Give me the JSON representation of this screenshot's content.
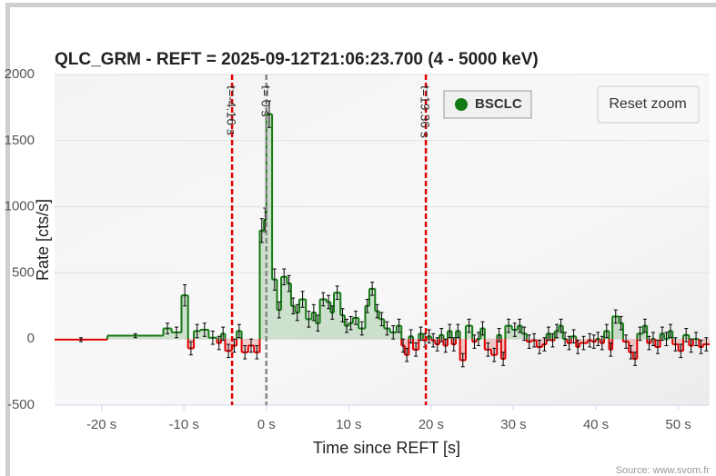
{
  "chart_data": {
    "type": "step",
    "title": "QLC_GRM - REFT = 2025-09-12T21:06:23.700 (4 - 5000 keV)",
    "xlabel": "Time since REFT [s]",
    "ylabel": "Rate [cts/s]",
    "source": "Source: www.svom.fr",
    "reset_button": "Reset zoom",
    "xlim": [
      -25.7,
      53.8
    ],
    "ylim": [
      -500,
      2000
    ],
    "xticks": [
      {
        "value": -20,
        "label": "-20 s"
      },
      {
        "value": -10,
        "label": "-10 s"
      },
      {
        "value": 0,
        "label": "0 s"
      },
      {
        "value": 10,
        "label": "10 s"
      },
      {
        "value": 20,
        "label": "20 s"
      },
      {
        "value": 30,
        "label": "30 s"
      },
      {
        "value": 40,
        "label": "40 s"
      },
      {
        "value": 50,
        "label": "50 s"
      }
    ],
    "yticks": [
      -500,
      0,
      500,
      1000,
      1500,
      2000
    ],
    "grid": true,
    "plot_lines": [
      {
        "value": -4.16,
        "label": "t=-4.16 s",
        "color": "#e00000"
      },
      {
        "value": 0,
        "label": "t= 0 s",
        "color": "#888888"
      },
      {
        "value": 19.36,
        "label": "t=19.36 s",
        "color": "#e00000"
      }
    ],
    "series": [
      {
        "name": "BSCLC",
        "color": "#137a13",
        "negative_color": "#e00000",
        "x": [
          -25.7,
          -19.3,
          -12.5,
          -11.5,
          -10.3,
          -9.5,
          -8.8,
          -8,
          -7,
          -6,
          -5.5,
          -5,
          -4.2,
          -3.6,
          -3,
          -2.2,
          -1.5,
          -0.8,
          -0.3,
          0,
          0.7,
          1.3,
          1.8,
          2.5,
          3,
          3.5,
          4,
          4.8,
          5.5,
          6,
          6.5,
          7.3,
          7.8,
          8.2,
          9,
          9.5,
          10,
          10.5,
          11.2,
          12,
          12.5,
          13.2,
          13.7,
          14.3,
          15,
          15.8,
          16.4,
          16.8,
          17.3,
          17.8,
          18.5,
          19,
          19.5,
          20,
          20.5,
          21,
          21.5,
          22,
          22.5,
          23,
          23.5,
          24.2,
          25,
          25.5,
          26,
          26.5,
          27.3,
          28,
          28.5,
          29,
          29.8,
          30.5,
          31,
          31.6,
          32.2,
          32.8,
          33.5,
          34,
          34.5,
          35,
          35.5,
          36,
          36.5,
          37,
          37.6,
          38,
          39,
          39.5,
          40,
          40.5,
          41,
          41.6,
          42,
          42.8,
          43.3,
          44,
          44.5,
          45,
          45.7,
          46.2,
          46.7,
          47.2,
          47.8,
          48.3,
          48.8,
          49.3,
          50,
          50.6,
          51.3,
          51.8,
          52.5,
          53
        ],
        "values": [
          -5,
          25,
          80,
          50,
          330,
          -70,
          60,
          70,
          10,
          -30,
          40,
          -90,
          -50,
          60,
          -100,
          -50,
          -100,
          820,
          900,
          1700,
          450,
          220,
          470,
          420,
          250,
          200,
          300,
          150,
          200,
          120,
          300,
          280,
          200,
          350,
          180,
          100,
          120,
          160,
          80,
          250,
          380,
          210,
          150,
          80,
          50,
          100,
          -50,
          -120,
          20,
          -80,
          40,
          -10,
          20,
          -10,
          -40,
          30,
          -50,
          60,
          -40,
          60,
          -160,
          100,
          -20,
          0,
          80,
          -80,
          -120,
          30,
          -150,
          100,
          70,
          100,
          40,
          -20,
          -10,
          -60,
          -40,
          40,
          -10,
          60,
          100,
          0,
          -30,
          20,
          -60,
          -30,
          -10,
          -20,
          0,
          -30,
          60,
          -80,
          170,
          120,
          -20,
          -100,
          -150,
          40,
          100,
          -30,
          0,
          -60,
          40,
          0,
          60,
          -40,
          -90,
          30,
          -50,
          0,
          -60,
          -40
        ],
        "errors": [
          15,
          15,
          40,
          40,
          80,
          50,
          50,
          50,
          50,
          50,
          50,
          50,
          50,
          50,
          50,
          50,
          50,
          90,
          90,
          100,
          80,
          60,
          60,
          60,
          60,
          60,
          60,
          60,
          60,
          60,
          50,
          50,
          50,
          50,
          50,
          50,
          50,
          50,
          50,
          50,
          50,
          50,
          50,
          50,
          50,
          50,
          50,
          50,
          50,
          50,
          50,
          50,
          50,
          50,
          50,
          50,
          50,
          50,
          50,
          50,
          50,
          50,
          50,
          50,
          50,
          50,
          50,
          50,
          50,
          50,
          50,
          50,
          50,
          50,
          50,
          50,
          50,
          50,
          50,
          50,
          50,
          50,
          50,
          50,
          50,
          50,
          50,
          50,
          50,
          50,
          50,
          50,
          50,
          50,
          50,
          50,
          50,
          50,
          50,
          50,
          50,
          50,
          50,
          50,
          50,
          50,
          50,
          50,
          50,
          50,
          50,
          50
        ]
      }
    ]
  }
}
